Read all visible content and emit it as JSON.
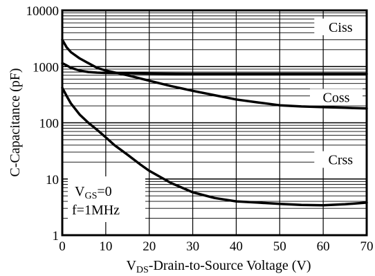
{
  "chart_data": {
    "type": "line",
    "xlabel": {
      "main": "V",
      "sub": "DS",
      "rest": "-Drain-to-Source Voltage (V)"
    },
    "ylabel": "C-Capacitance (pF)",
    "xlim": [
      0,
      70
    ],
    "ylim": [
      1,
      10000
    ],
    "yscale": "log",
    "grid": true,
    "x_ticks": [
      0,
      10,
      20,
      30,
      40,
      50,
      60,
      70
    ],
    "y_ticks": [
      1,
      10,
      100,
      1000,
      10000
    ],
    "series": [
      {
        "name": "Ciss",
        "x": [
          0,
          1,
          2,
          4,
          6,
          8,
          10,
          15,
          20,
          30,
          40,
          50,
          60,
          70
        ],
        "y": [
          1150,
          1050,
          950,
          850,
          800,
          780,
          770,
          760,
          750,
          740,
          740,
          740,
          740,
          740
        ]
      },
      {
        "name": "Coss",
        "x": [
          0,
          1,
          2,
          4,
          6,
          8,
          10,
          15,
          20,
          25,
          30,
          35,
          40,
          45,
          50,
          55,
          60,
          65,
          70
        ],
        "y": [
          3000,
          2200,
          1800,
          1400,
          1150,
          950,
          850,
          700,
          560,
          450,
          370,
          310,
          260,
          230,
          205,
          195,
          190,
          185,
          180
        ]
      },
      {
        "name": "Crss",
        "x": [
          0,
          1,
          2,
          4,
          6,
          8,
          10,
          12,
          15,
          18,
          20,
          25,
          30,
          35,
          40,
          45,
          50,
          55,
          60,
          65,
          70
        ],
        "y": [
          420,
          300,
          220,
          140,
          100,
          75,
          55,
          40,
          27,
          18,
          14,
          8.5,
          5.8,
          4.6,
          4.0,
          3.8,
          3.6,
          3.45,
          3.4,
          3.55,
          3.8
        ]
      }
    ],
    "annotation": {
      "vgs": {
        "main": "V",
        "sub": "GS",
        "rest": "=0"
      },
      "freq": "f=1MHz"
    }
  }
}
